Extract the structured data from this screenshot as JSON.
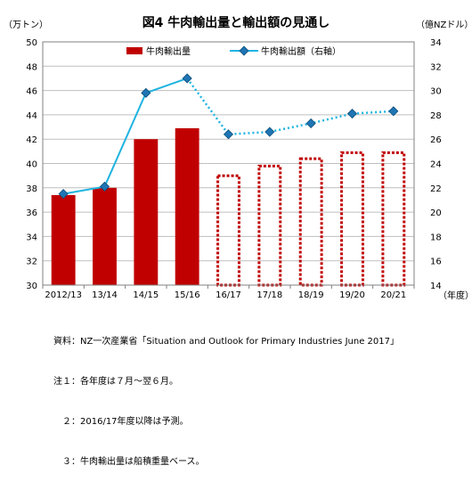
{
  "chart_data": {
    "type": "bar+line",
    "title": "図4 牛肉輸出量と輸出額の見通し",
    "left_axis_unit": "（万トン）",
    "right_axis_unit": "（億NZドル）",
    "x_axis_unit": "（年度）",
    "categories": [
      "2012/13",
      "13/14",
      "14/15",
      "15/16",
      "16/17",
      "17/18",
      "18/19",
      "19/20",
      "20/21"
    ],
    "left_axis": {
      "min": 30,
      "max": 50,
      "step": 2,
      "ticks": [
        "30",
        "32",
        "34",
        "36",
        "38",
        "40",
        "42",
        "44",
        "46",
        "48",
        "50"
      ]
    },
    "right_axis": {
      "min": 14,
      "max": 34,
      "step": 2,
      "ticks": [
        "14",
        "16",
        "18",
        "20",
        "22",
        "24",
        "26",
        "28",
        "30",
        "32",
        "34"
      ]
    },
    "series": [
      {
        "name": "牛肉輸出量",
        "type": "bar",
        "axis": "left",
        "color": "#c00000",
        "values": [
          37.4,
          38.0,
          42.0,
          42.9,
          39.1,
          39.9,
          40.5,
          41.0,
          41.0
        ],
        "forecast_from_index": 4
      },
      {
        "name": "牛肉輸出額（右軸）",
        "type": "line",
        "axis": "right",
        "line_color": "#1fb4e0",
        "marker_color": "#1f75b4",
        "values": [
          21.5,
          22.1,
          29.8,
          31.0,
          26.4,
          26.6,
          27.3,
          28.1,
          28.3
        ],
        "forecast_from_index": 3
      }
    ],
    "grid": "horizontal",
    "legend_placement": "top-center",
    "notes": [
      "資料：NZ一次産業省「Situation and Outlook for Primary Industries June 2017」",
      "注１：各年度は７月～翌６月。",
      "　２：2016/17年度以降は予測。",
      "　３：牛肉輸出量は船積重量ベース。"
    ]
  }
}
